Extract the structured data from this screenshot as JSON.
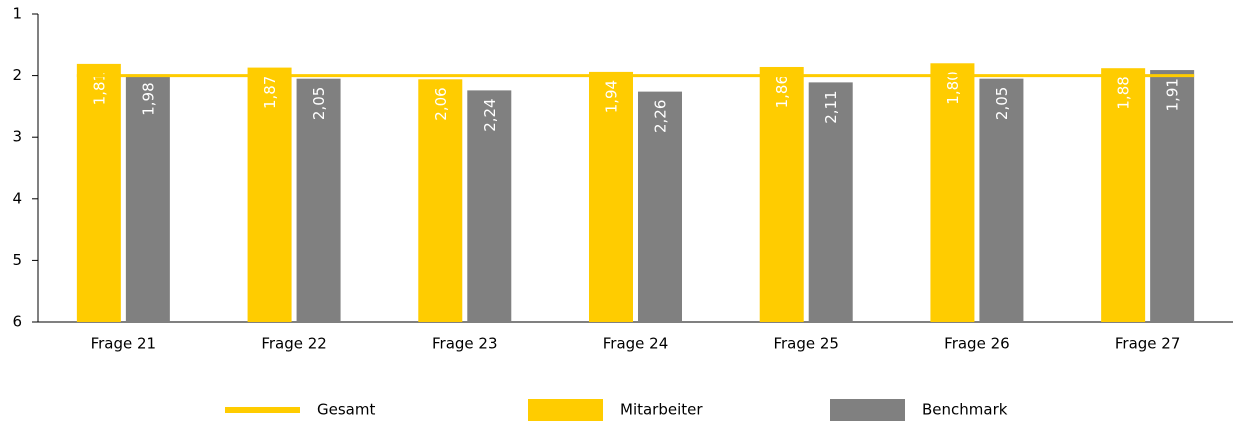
{
  "chart_data": {
    "type": "bar",
    "categories": [
      "Frage 21",
      "Frage 22",
      "Frage 23",
      "Frage 24",
      "Frage 25",
      "Frage 26",
      "Frage 27"
    ],
    "series": [
      {
        "name": "Mitarbeiter",
        "color": "#ffcc00",
        "values": [
          1.81,
          1.87,
          2.06,
          1.94,
          1.86,
          1.8,
          1.88
        ],
        "value_labels": [
          "1,81",
          "1,87",
          "2,06",
          "1,94",
          "1,86",
          "1,80",
          "1,88"
        ]
      },
      {
        "name": "Benchmark",
        "color": "#808080",
        "values": [
          1.98,
          2.05,
          2.24,
          2.26,
          2.11,
          2.05,
          1.91
        ],
        "value_labels": [
          "1,98",
          "2,05",
          "2,24",
          "2,26",
          "2,11",
          "2,05",
          "1,91"
        ]
      }
    ],
    "reference_line": {
      "name": "Gesamt",
      "value": 2,
      "color": "#ffcc00"
    },
    "ylim": [
      1,
      6
    ],
    "y_inverted": true,
    "yticks": [
      1,
      2,
      3,
      4,
      5,
      6
    ],
    "grid": false
  }
}
